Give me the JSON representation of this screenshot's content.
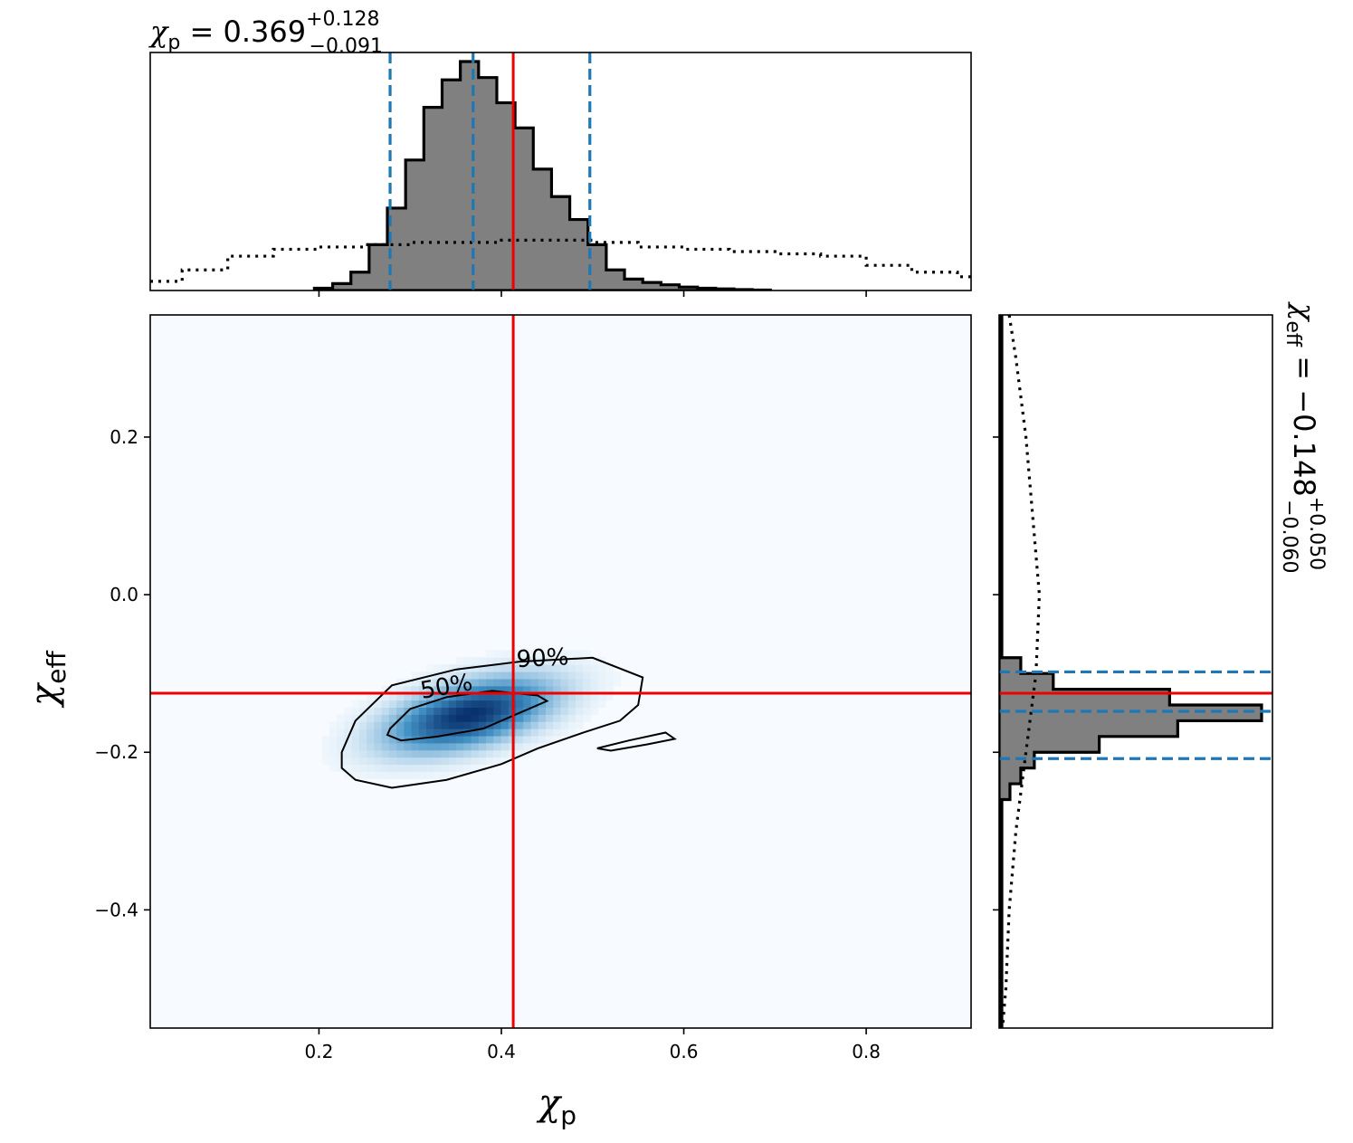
{
  "colors": {
    "posterior_fill": "#808080",
    "posterior_edge": "#000000",
    "quantile_line": "#1f77b4",
    "truth_line": "#ee0000",
    "density_low": "#f7fbff",
    "density_high": "#08306b"
  },
  "chart_data": {
    "type": "corner",
    "x": {
      "label_main": "χ",
      "label_sub": "p",
      "lim": [
        0.015,
        0.915
      ],
      "ticks": [
        0.2,
        0.4,
        0.6,
        0.8
      ],
      "tick_labels": [
        "0.2",
        "0.4",
        "0.6",
        "0.8"
      ]
    },
    "y": {
      "label_main": "χ",
      "label_sub": "eff",
      "lim": [
        -0.55,
        0.355
      ],
      "ticks": [
        0.2,
        0.0,
        -0.2,
        -0.4
      ],
      "tick_labels": [
        "0.2",
        "0.0",
        "−0.2",
        "−0.4"
      ]
    },
    "truth": {
      "x": 0.413,
      "y": -0.125
    },
    "x_summary": {
      "var": "χ",
      "sub": "p",
      "eq": " = ",
      "value": "0.369",
      "plus": "+0.128",
      "minus": "−0.091",
      "quantiles": [
        0.278,
        0.369,
        0.497
      ]
    },
    "y_summary": {
      "var": "χ",
      "sub": "eff",
      "eq": " = ",
      "value": "−0.148",
      "plus": "+0.050",
      "minus": "−0.060",
      "quantiles": [
        -0.208,
        -0.148,
        -0.098
      ]
    },
    "x_histogram": {
      "bin_edges": [
        0.195,
        0.215,
        0.235,
        0.255,
        0.275,
        0.295,
        0.315,
        0.335,
        0.355,
        0.375,
        0.395,
        0.415,
        0.435,
        0.455,
        0.475,
        0.495,
        0.515,
        0.535,
        0.555,
        0.575,
        0.595,
        0.615,
        0.635,
        0.655,
        0.675,
        0.695
      ],
      "counts": [
        0.01,
        0.03,
        0.08,
        0.2,
        0.36,
        0.57,
        0.8,
        0.92,
        1.0,
        0.93,
        0.82,
        0.71,
        0.53,
        0.41,
        0.31,
        0.2,
        0.09,
        0.05,
        0.035,
        0.025,
        0.015,
        0.01,
        0.007,
        0.004,
        0.002
      ]
    },
    "x_prior": {
      "x": [
        0.015,
        0.05,
        0.1,
        0.15,
        0.2,
        0.25,
        0.3,
        0.35,
        0.4,
        0.45,
        0.5,
        0.55,
        0.6,
        0.65,
        0.7,
        0.75,
        0.8,
        0.85,
        0.9,
        0.915
      ],
      "density": [
        0.04,
        0.09,
        0.15,
        0.18,
        0.19,
        0.2,
        0.21,
        0.21,
        0.22,
        0.22,
        0.21,
        0.19,
        0.18,
        0.17,
        0.16,
        0.15,
        0.11,
        0.08,
        0.06,
        0.05
      ]
    },
    "y_histogram": {
      "bin_edges": [
        -0.55,
        -0.26,
        -0.24,
        -0.22,
        -0.2,
        -0.18,
        -0.16,
        -0.14,
        -0.12,
        -0.1,
        -0.08,
        0.355
      ],
      "counts": [
        0.01,
        0.04,
        0.08,
        0.13,
        0.37,
        0.66,
        0.97,
        0.63,
        0.2,
        0.08,
        0.01
      ]
    },
    "y_prior": {
      "y": [
        0.355,
        0.3,
        0.2,
        0.1,
        0.0,
        -0.1,
        -0.2,
        -0.3,
        -0.4,
        -0.5,
        -0.55
      ],
      "density": [
        0.03,
        0.05,
        0.08,
        0.1,
        0.12,
        0.11,
        0.08,
        0.05,
        0.03,
        0.02,
        0.01
      ]
    },
    "density_2d": {
      "center": [
        0.365,
        -0.152
      ],
      "sigma_major": 0.06,
      "sigma_minor": 0.022,
      "angle_deg": 15
    },
    "contours": [
      {
        "label": "50%",
        "points": [
          [
            0.278,
            -0.17
          ],
          [
            0.3,
            -0.145
          ],
          [
            0.34,
            -0.13
          ],
          [
            0.39,
            -0.122
          ],
          [
            0.44,
            -0.128
          ],
          [
            0.45,
            -0.135
          ],
          [
            0.42,
            -0.15
          ],
          [
            0.38,
            -0.17
          ],
          [
            0.33,
            -0.18
          ],
          [
            0.29,
            -0.185
          ],
          [
            0.275,
            -0.178
          ]
        ]
      },
      {
        "label": "90%",
        "points": [
          [
            0.225,
            -0.2
          ],
          [
            0.24,
            -0.16
          ],
          [
            0.28,
            -0.115
          ],
          [
            0.35,
            -0.095
          ],
          [
            0.42,
            -0.085
          ],
          [
            0.5,
            -0.08
          ],
          [
            0.555,
            -0.105
          ],
          [
            0.55,
            -0.14
          ],
          [
            0.53,
            -0.16
          ],
          [
            0.49,
            -0.175
          ],
          [
            0.44,
            -0.195
          ],
          [
            0.4,
            -0.215
          ],
          [
            0.34,
            -0.235
          ],
          [
            0.28,
            -0.245
          ],
          [
            0.24,
            -0.235
          ],
          [
            0.225,
            -0.22
          ]
        ]
      },
      {
        "label": "",
        "points": [
          [
            0.505,
            -0.195
          ],
          [
            0.54,
            -0.185
          ],
          [
            0.58,
            -0.175
          ],
          [
            0.59,
            -0.183
          ],
          [
            0.56,
            -0.19
          ],
          [
            0.52,
            -0.198
          ]
        ]
      }
    ]
  }
}
